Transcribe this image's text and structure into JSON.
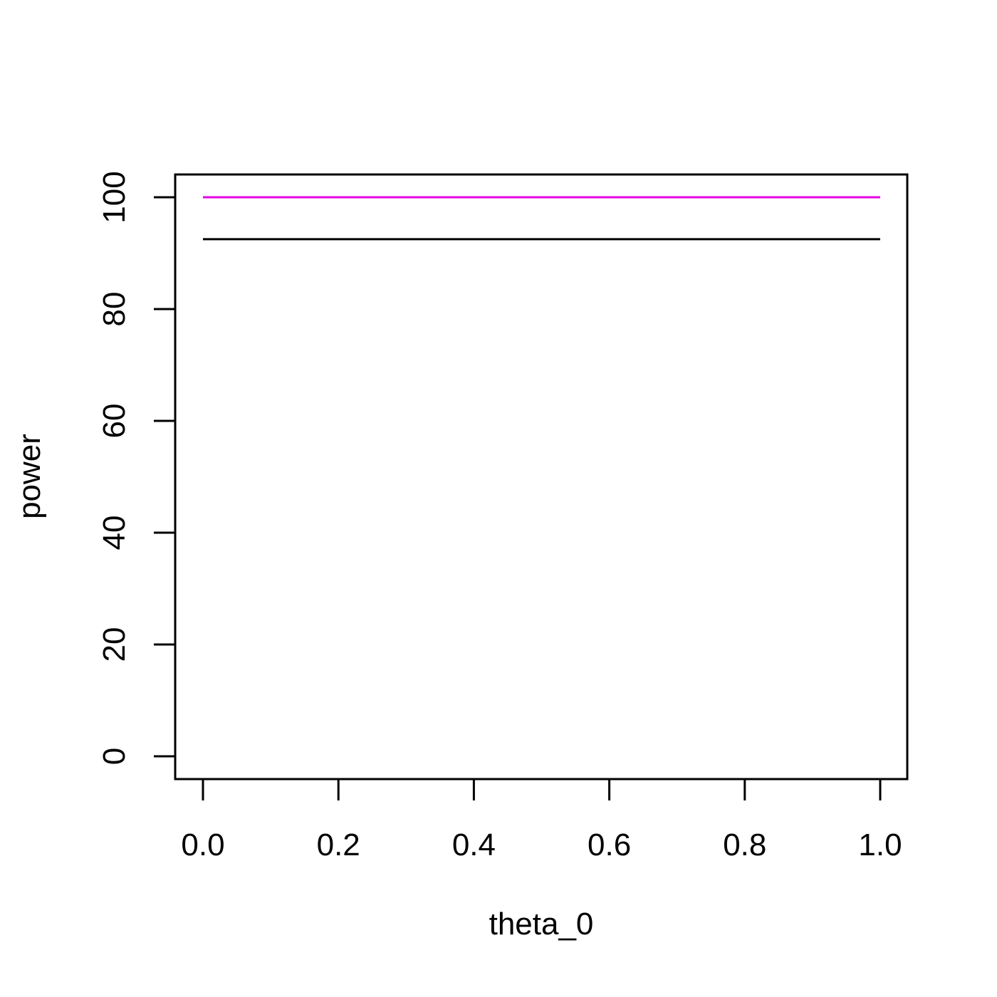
{
  "chart_data": {
    "type": "line",
    "title": "",
    "xlabel": "theta_0",
    "ylabel": "power",
    "xlim": [
      0.0,
      1.0
    ],
    "ylim": [
      0,
      100
    ],
    "x_ticks": [
      "0.0",
      "0.2",
      "0.4",
      "0.6",
      "0.8",
      "1.0"
    ],
    "x_tick_values": [
      0.0,
      0.2,
      0.4,
      0.6,
      0.8,
      1.0
    ],
    "y_ticks": [
      "0",
      "20",
      "40",
      "60",
      "80",
      "100"
    ],
    "y_tick_values": [
      0,
      20,
      40,
      60,
      80,
      100
    ],
    "grid": false,
    "legend": "none",
    "series": [
      {
        "x": [
          0.0,
          1.0
        ],
        "y": [
          100,
          100
        ],
        "color": "#e600e6"
      },
      {
        "x": [
          0.0,
          1.0
        ],
        "y": [
          92.5,
          92.5
        ],
        "color": "#000000"
      }
    ]
  }
}
